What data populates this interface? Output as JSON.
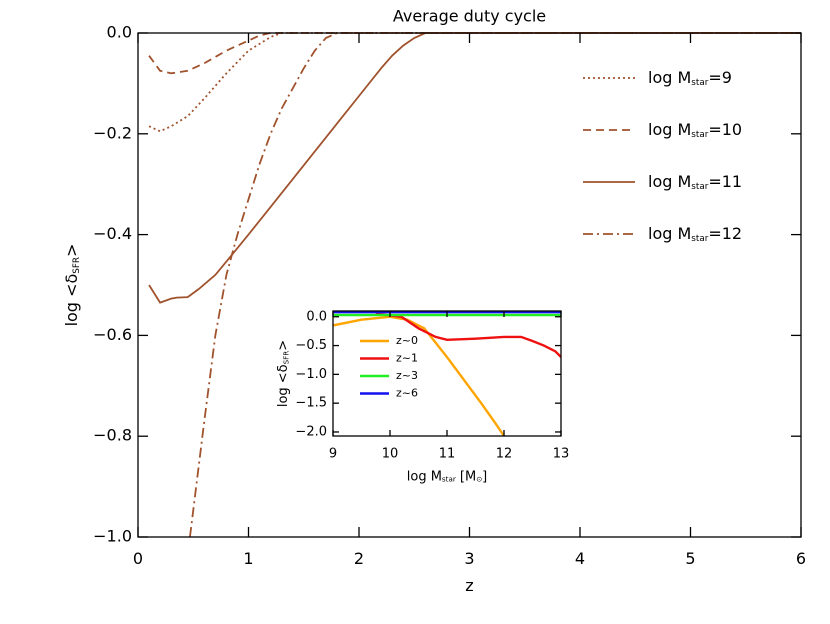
{
  "chart_data": [
    {
      "type": "line",
      "title": "Average duty cycle",
      "xlabel": "z",
      "ylabel": [
        "log <δ",
        "SFR",
        ">"
      ],
      "xlim": [
        0,
        6
      ],
      "ylim": [
        -1.0,
        0.0
      ],
      "xticks": [
        0,
        1,
        2,
        3,
        4,
        5,
        6
      ],
      "yticks": [
        {
          "value": -1.0,
          "label": "−1.0"
        },
        {
          "value": -0.8,
          "label": "−0.8"
        },
        {
          "value": -0.6,
          "label": "−0.6"
        },
        {
          "value": -0.4,
          "label": "−0.4"
        },
        {
          "value": -0.2,
          "label": "−0.2"
        },
        {
          "value": 0.0,
          "label": "0.0"
        }
      ],
      "legend": "upper right",
      "series": [
        {
          "name": [
            "log M",
            "star",
            "=9"
          ],
          "color": "#a0522d",
          "linestyle": "dotted",
          "x": [
            0.1,
            0.2,
            0.3,
            0.45,
            0.6,
            0.8,
            1.0,
            1.2,
            1.3,
            6
          ],
          "values": [
            -0.185,
            -0.195,
            -0.185,
            -0.165,
            -0.13,
            -0.08,
            -0.035,
            -0.008,
            0.0,
            0.0
          ]
        },
        {
          "name": [
            "log M",
            "star",
            "=10"
          ],
          "color": "#a0522d",
          "linestyle": "dashed",
          "x": [
            0.1,
            0.2,
            0.3,
            0.45,
            0.6,
            0.8,
            1.0,
            1.1,
            1.2,
            6
          ],
          "values": [
            -0.045,
            -0.075,
            -0.08,
            -0.075,
            -0.06,
            -0.035,
            -0.015,
            -0.005,
            0.0,
            0.0
          ]
        },
        {
          "name": [
            "log M",
            "star",
            "=11"
          ],
          "color": "#a0522d",
          "linestyle": "solid",
          "x": [
            0.1,
            0.2,
            0.3,
            0.35,
            0.45,
            0.55,
            0.7,
            0.85,
            1.0,
            1.2,
            1.4,
            1.6,
            1.8,
            2.0,
            2.2,
            2.3,
            2.4,
            2.5,
            2.6,
            6
          ],
          "values": [
            -0.5,
            -0.535,
            -0.527,
            -0.525,
            -0.524,
            -0.508,
            -0.48,
            -0.44,
            -0.4,
            -0.345,
            -0.29,
            -0.235,
            -0.18,
            -0.125,
            -0.07,
            -0.045,
            -0.025,
            -0.01,
            0.0,
            0.0
          ]
        },
        {
          "name": [
            "log M",
            "star",
            "=12"
          ],
          "color": "#a0522d",
          "linestyle": "dashdot",
          "x": [
            0.47,
            0.6,
            0.7,
            0.8,
            0.9,
            1.0,
            1.1,
            1.2,
            1.3,
            1.4,
            1.5,
            1.6,
            1.7,
            1.8,
            6
          ],
          "values": [
            -1.0,
            -0.77,
            -0.6,
            -0.48,
            -0.4,
            -0.33,
            -0.26,
            -0.2,
            -0.15,
            -0.11,
            -0.07,
            -0.035,
            -0.01,
            0.0,
            0.0
          ]
        }
      ]
    },
    {
      "type": "line",
      "xlabel": [
        "log M",
        "star",
        " [M",
        "⊙",
        "]"
      ],
      "ylabel": [
        "log <δ",
        "SFR",
        ">"
      ],
      "xlim": [
        9,
        13
      ],
      "ylim": [
        -2.07,
        0.1
      ],
      "xticks": [
        9,
        10,
        11,
        12,
        13
      ],
      "yticks": [
        {
          "value": -2.0,
          "label": "−2.0"
        },
        {
          "value": -1.5,
          "label": "−1.5"
        },
        {
          "value": -1.0,
          "label": "−1.0"
        },
        {
          "value": -0.5,
          "label": "−0.5"
        },
        {
          "value": 0.0,
          "label": "0.0"
        }
      ],
      "legend": "left",
      "series": [
        {
          "name": "z~0",
          "color": "#ffa500",
          "linestyle": "solid",
          "x": [
            9,
            9.5,
            10,
            10.3,
            10.6,
            10.8,
            11,
            11.3,
            11.6,
            11.85,
            12.0
          ],
          "values": [
            -0.15,
            -0.05,
            0.0,
            -0.05,
            -0.2,
            -0.45,
            -0.7,
            -1.1,
            -1.5,
            -1.85,
            -2.07
          ]
        },
        {
          "name": "z~1",
          "color": "#ee1111",
          "linestyle": "solid",
          "x": [
            9.75,
            10.2,
            10.5,
            10.8,
            11.0,
            11.5,
            12.0,
            12.3,
            12.5,
            12.7,
            12.9,
            13
          ],
          "values": [
            0.05,
            0.0,
            -0.2,
            -0.35,
            -0.4,
            -0.38,
            -0.35,
            -0.35,
            -0.42,
            -0.5,
            -0.6,
            -0.7
          ]
        },
        {
          "name": "z~3",
          "color": "#22ee22",
          "linestyle": "solid",
          "x": [
            9,
            13
          ],
          "values": [
            0.03,
            0.03
          ]
        },
        {
          "name": "z~6",
          "color": "#1111ee",
          "linestyle": "solid",
          "x": [
            9,
            13
          ],
          "values": [
            0.08,
            0.08
          ]
        }
      ]
    }
  ]
}
